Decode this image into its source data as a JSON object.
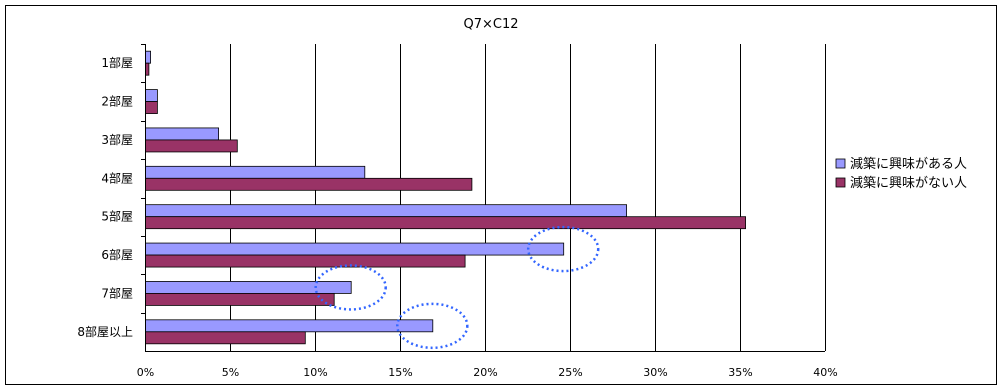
{
  "chart_data": {
    "type": "bar",
    "orientation": "horizontal",
    "title": "Q7×C12",
    "xlabel": "",
    "ylabel": "",
    "categories": [
      "1部屋",
      "2部屋",
      "3部屋",
      "4部屋",
      "5部屋",
      "6部屋",
      "7部屋",
      "8部屋以上"
    ],
    "series": [
      {
        "name": "減築に興味がある人",
        "color": "#9999ff",
        "values": [
          0.3,
          0.7,
          4.3,
          12.9,
          28.3,
          24.6,
          12.1,
          16.9
        ]
      },
      {
        "name": "減築に興味がない人",
        "color": "#993366",
        "values": [
          0.2,
          0.7,
          5.4,
          19.2,
          35.3,
          18.8,
          11.1,
          9.4
        ]
      }
    ],
    "xlim": [
      0,
      40
    ],
    "xticks": [
      0,
      5,
      10,
      15,
      20,
      25,
      30,
      35,
      40
    ],
    "tick_suffix": "%",
    "grid": true,
    "legend_position": "right",
    "annotations": [
      {
        "type": "dashed-ellipse",
        "color": "#3366ff",
        "category": "6部屋",
        "value": 24.6
      },
      {
        "type": "dashed-ellipse",
        "color": "#3366ff",
        "category": "7部屋",
        "value": 12.1
      },
      {
        "type": "dashed-ellipse",
        "color": "#3366ff",
        "category": "8部屋以上",
        "value": 16.9
      }
    ]
  }
}
